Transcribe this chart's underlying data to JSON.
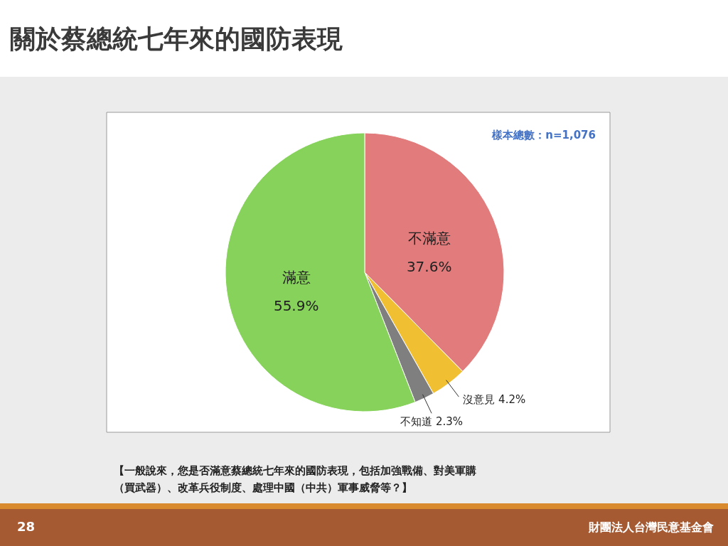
{
  "chart_data": {
    "type": "pie",
    "title": "關於蔡總統七年來的國防表現",
    "categories": [
      "不滿意",
      "沒意見",
      "不知道",
      "滿意"
    ],
    "values": [
      37.6,
      4.2,
      2.3,
      55.9
    ],
    "colors": [
      "#e27c7c",
      "#f0bf32",
      "#7f7f7f",
      "#86d25a"
    ],
    "value_labels": [
      "37.6%",
      "4.2%",
      "2.3%",
      "55.9%"
    ],
    "legend": false,
    "annotations": [
      "樣本總數：n=1,076",
      "【一般說來，您是否滿意蔡總統七年來的國防表現，包括加強戰備、對美軍購（買武器）、改革兵役制度、處理中國（中共）軍事威脅等？】",
      "28",
      "財團法人台灣民意基金會"
    ]
  }
}
